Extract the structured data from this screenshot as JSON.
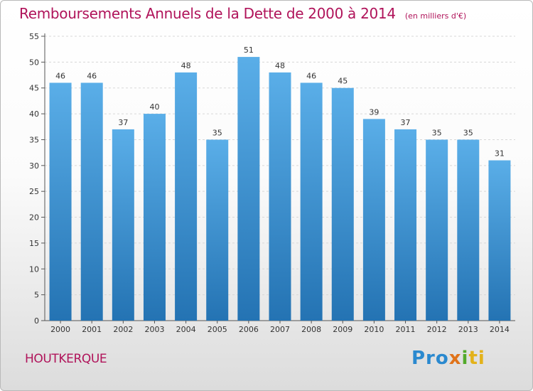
{
  "chart_data": {
    "type": "bar",
    "title": "Remboursements Annuels de la Dette de 2000 à 2014",
    "unit_note": "(en milliers d'€)",
    "categories": [
      "2000",
      "2001",
      "2002",
      "2003",
      "2004",
      "2005",
      "2006",
      "2007",
      "2008",
      "2009",
      "2010",
      "2011",
      "2012",
      "2013",
      "2014"
    ],
    "values": [
      46,
      46,
      37,
      40,
      48,
      35,
      51,
      48,
      46,
      45,
      39,
      37,
      35,
      35,
      31
    ],
    "ylim": [
      0,
      55
    ],
    "yticks": [
      0,
      5,
      10,
      15,
      20,
      25,
      30,
      35,
      40,
      45,
      50,
      55
    ],
    "grid": true,
    "bar_color_top": "#5aaee8",
    "bar_color_bottom": "#2473b3"
  },
  "footer": {
    "city": "HOUTKERQUE",
    "logo_parts": [
      "Pro",
      "x",
      "i",
      "ti"
    ]
  }
}
